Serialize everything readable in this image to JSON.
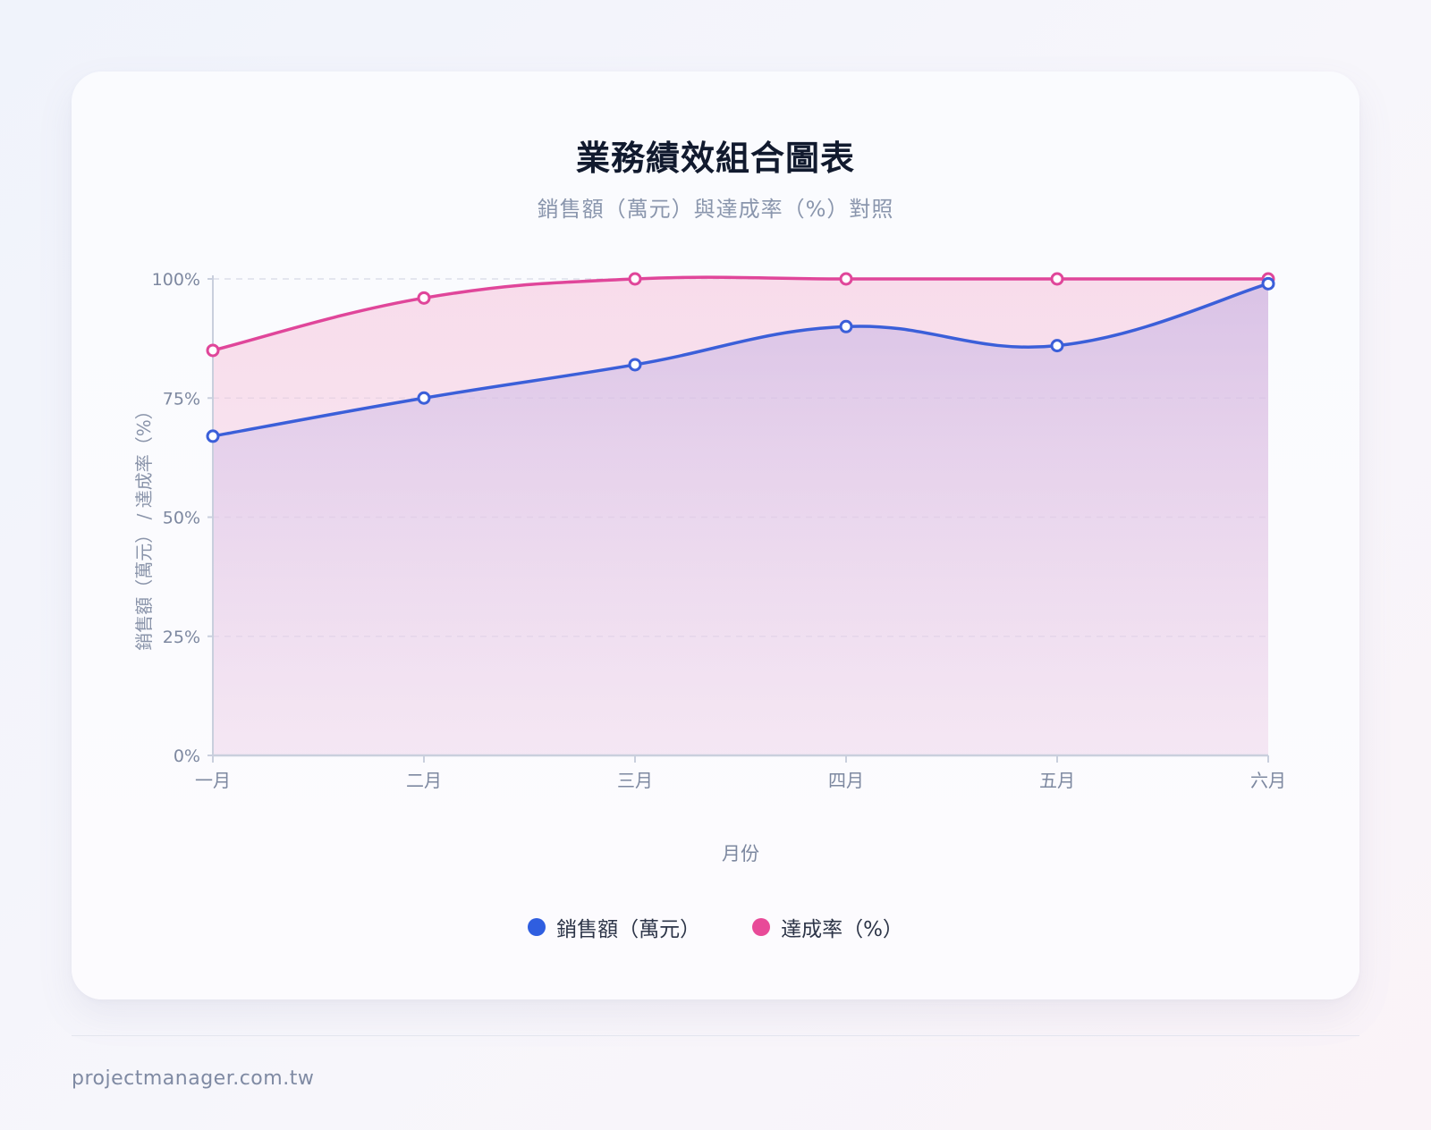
{
  "header": {
    "title": "業務績效組合圖表",
    "subtitle": "銷售額（萬元）與達成率（%）對照"
  },
  "legend": {
    "items": [
      {
        "label": "銷售額（萬元）",
        "color": "#2f5ee0"
      },
      {
        "label": "達成率（%）",
        "color": "#e84a98"
      }
    ]
  },
  "footer": {
    "site": "projectmanager.com.tw"
  },
  "chart_data": {
    "type": "area",
    "title": "業務績效組合圖表",
    "subtitle": "銷售額（萬元）與達成率（%）對照",
    "xlabel": "月份",
    "ylabel": "銷售額（萬元） / 達成率（%）",
    "categories": [
      "一月",
      "二月",
      "三月",
      "四月",
      "五月",
      "六月"
    ],
    "ylim": [
      0,
      100
    ],
    "yticks": [
      0,
      25,
      50,
      75,
      100
    ],
    "ytick_labels": [
      "0%",
      "25%",
      "50%",
      "75%",
      "100%"
    ],
    "grid": true,
    "legend_position": "bottom",
    "series": [
      {
        "name": "銷售額（萬元）",
        "color": "#3b5fd9",
        "values": [
          67,
          75,
          82,
          90,
          86,
          99
        ]
      },
      {
        "name": "達成率（%）",
        "color": "#e0469a",
        "values": [
          85,
          96,
          100,
          100,
          100,
          100
        ]
      }
    ]
  }
}
